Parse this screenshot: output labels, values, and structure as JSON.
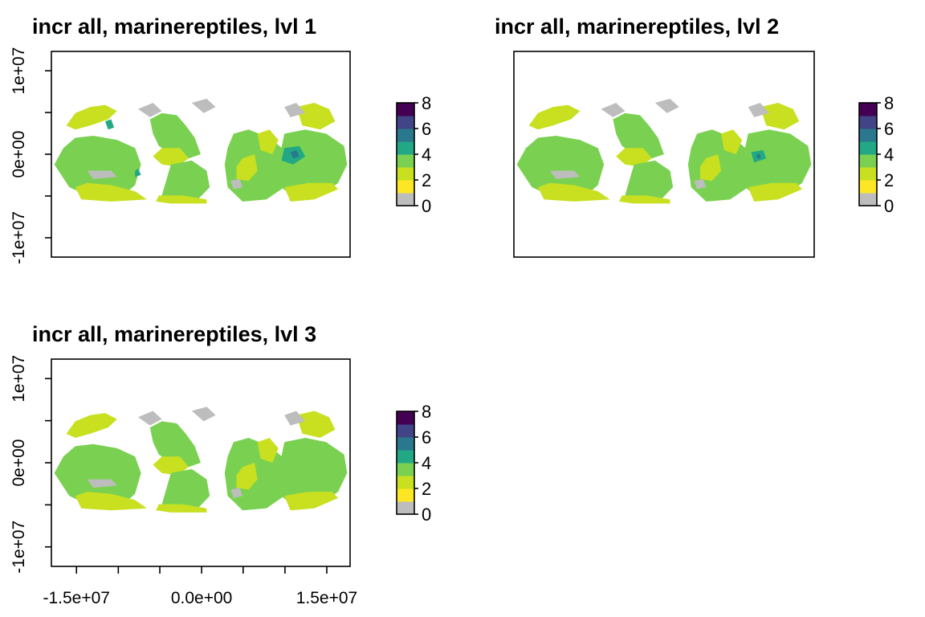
{
  "chart_data": [
    {
      "type": "heatmap",
      "title": "incr all, marinereptiles, lvl 1",
      "subject": "raster map",
      "y_ticks": [
        "-1e+07",
        "0e+00",
        "1e+07"
      ],
      "x_ticks": [],
      "legend": {
        "ticks": [
          "0",
          "2",
          "4",
          "6",
          "8"
        ],
        "range": [
          0,
          8
        ]
      },
      "value_classes": [
        {
          "value": "NA/grey",
          "color": "#bdbdbd"
        },
        {
          "value": 1,
          "color": "#c8e020"
        },
        {
          "value": 2,
          "color": "#7ad151"
        },
        {
          "value": 3,
          "color": "#22a884"
        },
        {
          "value": 4,
          "color": "#2a788e"
        },
        {
          "value": 5,
          "color": "#414487"
        },
        {
          "value": 6,
          "color": "#440154"
        }
      ],
      "hotspots": "blue-green cluster around Indonesia / Coral Triangle"
    },
    {
      "type": "heatmap",
      "title": "incr all, marinereptiles, lvl 2",
      "subject": "raster map",
      "y_ticks": [],
      "x_ticks": [],
      "legend": {
        "ticks": [
          "0",
          "2",
          "4",
          "6",
          "8"
        ],
        "range": [
          0,
          8
        ]
      },
      "hotspots": "smaller blue-green cluster around Indonesia"
    },
    {
      "type": "heatmap",
      "title": "incr all, marinereptiles, lvl 3",
      "subject": "raster map",
      "y_ticks": [
        "-1e+07",
        "0e+00",
        "1e+07"
      ],
      "x_ticks": [
        "-1.5e+07",
        "0.0e+00",
        "1.5e+07"
      ],
      "legend": {
        "ticks": [
          "0",
          "2",
          "4",
          "6",
          "8"
        ],
        "range": [
          0,
          8
        ]
      },
      "hotspots": "none"
    }
  ],
  "colors": {
    "viridis": [
      "#fde725",
      "#c8e020",
      "#7ad151",
      "#22a884",
      "#2a788e",
      "#414487",
      "#440154"
    ],
    "na": "#bdbdbd"
  }
}
